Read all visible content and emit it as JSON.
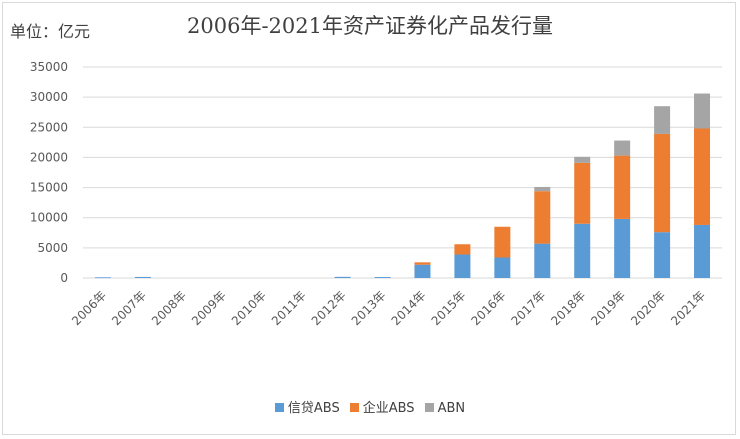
{
  "chart_data": {
    "type": "bar",
    "stacked": true,
    "title": "2006年-2021年资产证券化产品发行量",
    "unit_label": "单位：亿元",
    "categories": [
      "2006年",
      "2007年",
      "2008年",
      "2009年",
      "2010年",
      "2011年",
      "2012年",
      "2013年",
      "2014年",
      "2015年",
      "2016年",
      "2017年",
      "2018年",
      "2019年",
      "2020年",
      "2021年"
    ],
    "series": [
      {
        "name": "信贷ABS",
        "color": "#5b9bd5",
        "values": [
          115,
          178,
          0,
          0,
          0,
          0,
          190,
          160,
          2200,
          3900,
          3400,
          5700,
          9000,
          9800,
          7600,
          8800
        ]
      },
      {
        "name": "企业ABS",
        "color": "#ed7d31",
        "values": [
          0,
          0,
          0,
          0,
          0,
          0,
          0,
          0,
          400,
          1700,
          5100,
          8700,
          10100,
          10500,
          16300,
          16000
        ]
      },
      {
        "name": "ABN",
        "color": "#a5a5a5",
        "values": [
          0,
          0,
          0,
          0,
          0,
          0,
          0,
          0,
          0,
          0,
          0,
          700,
          1000,
          2500,
          4600,
          5800
        ]
      }
    ],
    "ylim": [
      0,
      35000
    ],
    "yticks": [
      0,
      5000,
      10000,
      15000,
      20000,
      25000,
      30000,
      35000
    ],
    "grid": true,
    "legend_position": "bottom"
  }
}
